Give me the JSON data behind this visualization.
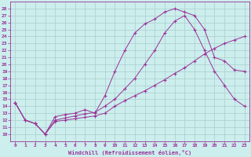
{
  "xlabel": "Windchill (Refroidissement éolien,°C)",
  "background_color": "#cceeed",
  "grid_color": "#aacccc",
  "line_color": "#993399",
  "xlim_min": -0.5,
  "xlim_max": 23.5,
  "ylim_min": 9,
  "ylim_max": 29,
  "ytick_min": 10,
  "ytick_max": 28,
  "xticks": [
    0,
    1,
    2,
    3,
    4,
    5,
    6,
    7,
    8,
    9,
    10,
    11,
    12,
    13,
    14,
    15,
    16,
    17,
    18,
    19,
    20,
    21,
    22,
    23
  ],
  "yticks": [
    10,
    11,
    12,
    13,
    14,
    15,
    16,
    17,
    18,
    19,
    20,
    21,
    22,
    23,
    24,
    25,
    26,
    27,
    28
  ],
  "line1_x": [
    0,
    1,
    2,
    3,
    4,
    5,
    6,
    7,
    8,
    9,
    10,
    11,
    12,
    13,
    14,
    15,
    16,
    17,
    18,
    19,
    20,
    21,
    22,
    23
  ],
  "line1_y": [
    14.5,
    12.0,
    11.5,
    10.0,
    12.5,
    12.8,
    13.0,
    13.5,
    13.0,
    15.5,
    19.0,
    22.0,
    24.5,
    25.8,
    26.5,
    27.5,
    28.0,
    27.5,
    27.0,
    25.0,
    21.0,
    20.5,
    19.2,
    19.0
  ],
  "line2_x": [
    0,
    1,
    2,
    3,
    4,
    5,
    6,
    7,
    8,
    9,
    10,
    11,
    12,
    13,
    14,
    15,
    16,
    17,
    18,
    19,
    20,
    21,
    22,
    23
  ],
  "line2_y": [
    14.5,
    12.0,
    11.5,
    10.0,
    12.0,
    12.3,
    12.6,
    12.9,
    13.1,
    14.0,
    15.0,
    16.5,
    18.0,
    20.0,
    22.0,
    24.5,
    26.2,
    27.0,
    25.0,
    22.0,
    19.0,
    17.0,
    15.0,
    14.0
  ],
  "line3_x": [
    0,
    1,
    2,
    3,
    4,
    5,
    6,
    7,
    8,
    9,
    10,
    11,
    12,
    13,
    14,
    15,
    16,
    17,
    18,
    19,
    20,
    21,
    22,
    23
  ],
  "line3_y": [
    14.5,
    12.0,
    11.5,
    10.0,
    11.8,
    12.0,
    12.2,
    12.4,
    12.6,
    13.0,
    14.0,
    14.8,
    15.5,
    16.2,
    17.0,
    17.8,
    18.7,
    19.5,
    20.5,
    21.5,
    22.3,
    23.0,
    23.5,
    24.0
  ]
}
